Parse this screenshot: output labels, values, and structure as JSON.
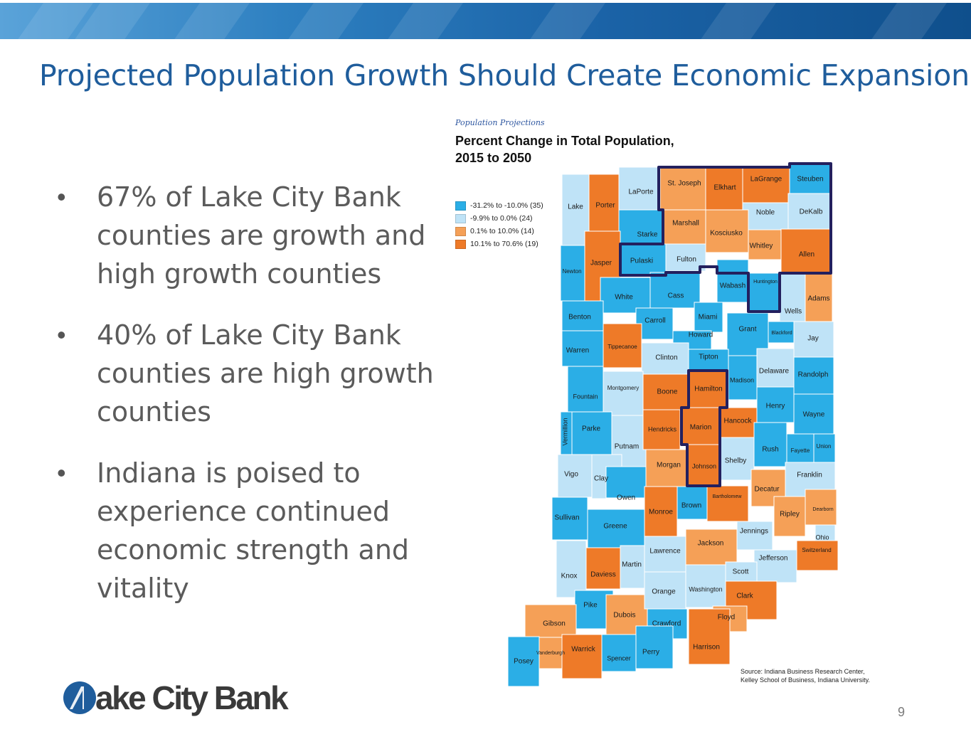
{
  "slide": {
    "title": "Projected Population Growth Should Create Economic Expansion",
    "page_number": "9"
  },
  "bullets": [
    {
      "text": "67% of Lake City Bank counties are growth and high growth counties"
    },
    {
      "text": "40% of Lake City Bank counties are high growth counties"
    },
    {
      "text": "Indiana is poised to experience continued economic strength and vitality"
    }
  ],
  "map": {
    "kicker": "Population Projections",
    "title_line1": "Percent Change in Total Population,",
    "title_line2": "2015 to 2050",
    "legend": [
      {
        "label": "-31.2% to -10.0% (35)",
        "color": "#2baee6"
      },
      {
        "label": "-9.9% to 0.0% (24)",
        "color": "#bfe3f7"
      },
      {
        "label": "0.1% to 10.0% (14)",
        "color": "#f5a057"
      },
      {
        "label": "10.1% to 70.6% (19)",
        "color": "#ee7a28"
      }
    ],
    "counties": [
      {
        "name": "Lake",
        "class": "c2"
      },
      {
        "name": "Porter",
        "class": "c4"
      },
      {
        "name": "LaPorte",
        "class": "c2"
      },
      {
        "name": "St. Joseph",
        "class": "c3"
      },
      {
        "name": "Elkhart",
        "class": "c4"
      },
      {
        "name": "LaGrange",
        "class": "c4"
      },
      {
        "name": "Steuben",
        "class": "c1"
      },
      {
        "name": "Noble",
        "class": "c2"
      },
      {
        "name": "DeKalb",
        "class": "c2"
      },
      {
        "name": "Starke",
        "class": "c1"
      },
      {
        "name": "Marshall",
        "class": "c3"
      },
      {
        "name": "Kosciusko",
        "class": "c3"
      },
      {
        "name": "Whitley",
        "class": "c3"
      },
      {
        "name": "Allen",
        "class": "c4"
      },
      {
        "name": "Newton",
        "class": "c1"
      },
      {
        "name": "Jasper",
        "class": "c4"
      },
      {
        "name": "Pulaski",
        "class": "c1"
      },
      {
        "name": "Fulton",
        "class": "c2"
      },
      {
        "name": "Wabash",
        "class": "c1"
      },
      {
        "name": "Huntington",
        "class": "c1"
      },
      {
        "name": "Adams",
        "class": "c3"
      },
      {
        "name": "White",
        "class": "c1"
      },
      {
        "name": "Cass",
        "class": "c1"
      },
      {
        "name": "Wells",
        "class": "c2"
      },
      {
        "name": "Benton",
        "class": "c1"
      },
      {
        "name": "Carroll",
        "class": "c1"
      },
      {
        "name": "Miami",
        "class": "c1"
      },
      {
        "name": "Howard",
        "class": "c1"
      },
      {
        "name": "Grant",
        "class": "c1"
      },
      {
        "name": "Blackford",
        "class": "c1"
      },
      {
        "name": "Jay",
        "class": "c2"
      },
      {
        "name": "Warren",
        "class": "c1"
      },
      {
        "name": "Tippecanoe",
        "class": "c4"
      },
      {
        "name": "Clinton",
        "class": "c2"
      },
      {
        "name": "Tipton",
        "class": "c1"
      },
      {
        "name": "Madison",
        "class": "c1"
      },
      {
        "name": "Delaware",
        "class": "c2"
      },
      {
        "name": "Randolph",
        "class": "c1"
      },
      {
        "name": "Fountain",
        "class": "c1"
      },
      {
        "name": "Montgomery",
        "class": "c2"
      },
      {
        "name": "Boone",
        "class": "c4"
      },
      {
        "name": "Hamilton",
        "class": "c4"
      },
      {
        "name": "Henry",
        "class": "c1"
      },
      {
        "name": "Wayne",
        "class": "c1"
      },
      {
        "name": "Vermillion",
        "class": "c1"
      },
      {
        "name": "Parke",
        "class": "c1"
      },
      {
        "name": "Putnam",
        "class": "c2"
      },
      {
        "name": "Hendricks",
        "class": "c4"
      },
      {
        "name": "Marion",
        "class": "c4"
      },
      {
        "name": "Hancock",
        "class": "c4"
      },
      {
        "name": "Rush",
        "class": "c1"
      },
      {
        "name": "Fayette",
        "class": "c1"
      },
      {
        "name": "Union",
        "class": "c1"
      },
      {
        "name": "Vigo",
        "class": "c2"
      },
      {
        "name": "Clay",
        "class": "c2"
      },
      {
        "name": "Owen",
        "class": "c1"
      },
      {
        "name": "Morgan",
        "class": "c3"
      },
      {
        "name": "Johnson",
        "class": "c4"
      },
      {
        "name": "Shelby",
        "class": "c2"
      },
      {
        "name": "Decatur",
        "class": "c3"
      },
      {
        "name": "Franklin",
        "class": "c2"
      },
      {
        "name": "Sullivan",
        "class": "c1"
      },
      {
        "name": "Greene",
        "class": "c1"
      },
      {
        "name": "Monroe",
        "class": "c4"
      },
      {
        "name": "Brown",
        "class": "c1"
      },
      {
        "name": "Bartholomew",
        "class": "c4"
      },
      {
        "name": "Ripley",
        "class": "c3"
      },
      {
        "name": "Dearborn",
        "class": "c3"
      },
      {
        "name": "Jennings",
        "class": "c2"
      },
      {
        "name": "Ohio",
        "class": "c2"
      },
      {
        "name": "Knox",
        "class": "c2"
      },
      {
        "name": "Daviess",
        "class": "c4"
      },
      {
        "name": "Martin",
        "class": "c2"
      },
      {
        "name": "Lawrence",
        "class": "c2"
      },
      {
        "name": "Jackson",
        "class": "c3"
      },
      {
        "name": "Jefferson",
        "class": "c2"
      },
      {
        "name": "Switzerland",
        "class": "c4"
      },
      {
        "name": "Scott",
        "class": "c2"
      },
      {
        "name": "Pike",
        "class": "c1"
      },
      {
        "name": "Dubois",
        "class": "c3"
      },
      {
        "name": "Orange",
        "class": "c2"
      },
      {
        "name": "Washington",
        "class": "c2"
      },
      {
        "name": "Clark",
        "class": "c4"
      },
      {
        "name": "Gibson",
        "class": "c3"
      },
      {
        "name": "Crawford",
        "class": "c1"
      },
      {
        "name": "Floyd",
        "class": "c3"
      },
      {
        "name": "Posey",
        "class": "c1"
      },
      {
        "name": "Vanderburgh",
        "class": "c3"
      },
      {
        "name": "Warrick",
        "class": "c4"
      },
      {
        "name": "Spencer",
        "class": "c1"
      },
      {
        "name": "Perry",
        "class": "c1"
      },
      {
        "name": "Harrison",
        "class": "c4"
      }
    ],
    "source_line1": "Source: Indiana Business Research Center,",
    "source_line2": "Kelley School of Business, Indiana University."
  },
  "logo": {
    "text": "ake City Bank"
  },
  "colors": {
    "title_blue": "#1f5d9c",
    "bullet_text": "#5b5b5b",
    "service_area_outline": "#23205e"
  }
}
